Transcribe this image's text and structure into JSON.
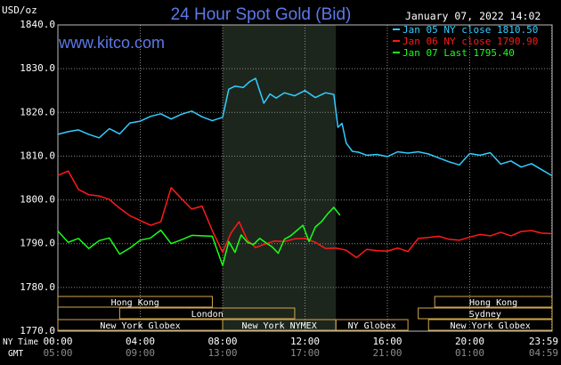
{
  "chart_data": {
    "type": "line",
    "title": "24 Hour Spot Gold (Bid)",
    "brand": "www.kitco.com",
    "ylabel": "USD/oz",
    "timestamp": "January 07, 2022 14:02",
    "ylim": [
      1770.0,
      1840.0
    ],
    "yticks": [
      "1770.0",
      "1780.0",
      "1790.0",
      "1800.0",
      "1810.0",
      "1820.0",
      "1830.0",
      "1840.0"
    ],
    "xlim": [
      0,
      24
    ],
    "xticks_ny": [
      "00:00",
      "04:00",
      "08:00",
      "12:00",
      "16:00",
      "20:00",
      "23:59"
    ],
    "xticks_gmt": [
      "05:00",
      "09:00",
      "13:00",
      "17:00",
      "21:00",
      "01:00",
      "04:59"
    ],
    "xaxis_labels": {
      "ny": "NY Time",
      "gmt": "GMT"
    },
    "highlight_range": [
      8.0,
      13.5
    ],
    "sessions": [
      {
        "label": "Hong Kong",
        "row": 0,
        "ranges": [
          [
            0,
            7.5
          ],
          [
            18.3,
            24
          ]
        ]
      },
      {
        "label": "London",
        "row": 1,
        "ranges": [
          [
            3.0,
            11.5
          ]
        ]
      },
      {
        "label": "Sydney",
        "row": 1,
        "ranges": [
          [
            17.5,
            24
          ]
        ]
      },
      {
        "label": "New York Globex",
        "row": 2,
        "ranges": [
          [
            0,
            8.0
          ],
          [
            18.0,
            24
          ]
        ]
      },
      {
        "label": "New York NYMEX",
        "row": 2,
        "ranges": [
          [
            8.0,
            13.5
          ]
        ]
      },
      {
        "label": "NY Globex",
        "row": 2,
        "ranges": [
          [
            13.5,
            17.0
          ]
        ]
      }
    ],
    "legend_position": "top-right",
    "series": [
      {
        "name": "Jan 05 NY close 1810.50",
        "color": "#33ccff",
        "x": [
          0,
          0.5,
          1.0,
          1.5,
          2.0,
          2.5,
          3.0,
          3.5,
          4.0,
          4.5,
          5.0,
          5.5,
          6.0,
          6.5,
          7.0,
          7.5,
          8.0,
          8.3,
          8.6,
          9.0,
          9.3,
          9.6,
          10.0,
          10.3,
          10.6,
          11.0,
          11.5,
          12.0,
          12.5,
          13.0,
          13.4,
          13.6,
          13.8,
          14.0,
          14.3,
          14.6,
          15.0,
          15.5,
          16.0,
          16.5,
          17.0,
          17.5,
          18.0,
          18.5,
          19.0,
          19.5,
          20.0,
          20.5,
          21.0,
          21.5,
          22.0,
          22.5,
          23.0,
          23.5,
          23.98
        ],
        "y": [
          1815.0,
          1815.6,
          1816.0,
          1815.0,
          1814.2,
          1816.3,
          1815.1,
          1817.6,
          1818.0,
          1819.1,
          1819.7,
          1818.5,
          1819.6,
          1820.3,
          1819.0,
          1818.1,
          1818.9,
          1825.3,
          1826.0,
          1825.7,
          1827.0,
          1827.8,
          1822.1,
          1824.2,
          1823.3,
          1824.5,
          1823.8,
          1825.0,
          1823.4,
          1824.5,
          1824.1,
          1816.6,
          1817.5,
          1813.0,
          1811.1,
          1810.9,
          1810.2,
          1810.4,
          1809.9,
          1811.0,
          1810.7,
          1811.0,
          1810.5,
          1809.6,
          1808.7,
          1808.0,
          1810.6,
          1810.2,
          1810.8,
          1808.2,
          1808.9,
          1807.5,
          1808.3,
          1806.9,
          1805.6
        ]
      },
      {
        "name": "Jan 06 NY close 1790.90",
        "color": "#ff1a1a",
        "x": [
          0,
          0.5,
          1.0,
          1.5,
          2.0,
          2.5,
          3.0,
          3.5,
          4.0,
          4.5,
          5.0,
          5.5,
          6.0,
          6.5,
          7.0,
          7.5,
          8.0,
          8.4,
          8.8,
          9.2,
          9.6,
          10.0,
          10.5,
          11.0,
          11.5,
          12.0,
          12.5,
          13.0,
          13.5,
          14.0,
          14.5,
          15.0,
          15.5,
          16.0,
          16.5,
          17.0,
          17.5,
          18.0,
          18.5,
          19.0,
          19.5,
          20.0,
          20.5,
          21.0,
          21.5,
          22.0,
          22.5,
          23.0,
          23.5,
          23.98
        ],
        "y": [
          1805.6,
          1806.6,
          1802.4,
          1801.2,
          1800.9,
          1800.1,
          1798.1,
          1796.4,
          1795.3,
          1794.2,
          1795.0,
          1802.8,
          1800.3,
          1797.9,
          1798.6,
          1793.0,
          1788.0,
          1792.4,
          1795.0,
          1790.8,
          1789.1,
          1789.8,
          1790.6,
          1790.5,
          1791.1,
          1791.2,
          1790.3,
          1788.9,
          1789.0,
          1788.5,
          1786.8,
          1788.7,
          1788.4,
          1788.3,
          1789.0,
          1788.2,
          1791.2,
          1791.4,
          1791.7,
          1791.0,
          1790.8,
          1791.5,
          1792.1,
          1791.8,
          1792.6,
          1791.8,
          1792.8,
          1793.0,
          1792.4,
          1792.3
        ]
      },
      {
        "name": "Jan 07 Last 1795.40",
        "color": "#1aff1a",
        "x": [
          0,
          0.5,
          1.0,
          1.5,
          2.0,
          2.5,
          3.0,
          3.5,
          4.0,
          4.5,
          5.0,
          5.5,
          6.0,
          6.5,
          7.0,
          7.5,
          8.0,
          8.3,
          8.6,
          8.9,
          9.2,
          9.5,
          9.8,
          10.1,
          10.4,
          10.7,
          11.0,
          11.3,
          11.6,
          11.9,
          12.2,
          12.5,
          12.8,
          13.1,
          13.4,
          13.7
        ],
        "y": [
          1792.9,
          1790.3,
          1791.2,
          1788.9,
          1790.7,
          1791.3,
          1787.6,
          1789.0,
          1790.8,
          1791.3,
          1793.1,
          1790.0,
          1790.9,
          1791.9,
          1791.8,
          1791.7,
          1785.0,
          1790.5,
          1788.0,
          1792.0,
          1790.3,
          1789.8,
          1791.2,
          1790.2,
          1789.3,
          1787.8,
          1791.0,
          1791.8,
          1793.0,
          1794.2,
          1790.5,
          1793.8,
          1795.0,
          1796.8,
          1798.3,
          1796.5
        ]
      }
    ]
  }
}
